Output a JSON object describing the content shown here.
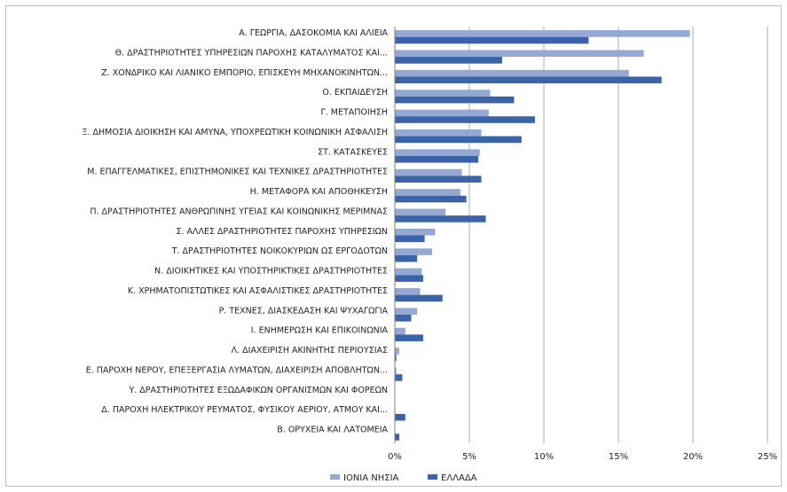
{
  "chart_data": {
    "type": "bar",
    "orientation": "horizontal",
    "categories": [
      "Α. ΓΕΩΡΓΙΑ, ΔΑΣΟΚΟΜΙΑ ΚΑΙ ΑΛΙΕΙΑ",
      "Θ. ΔΡΑΣΤΗΡΙΟΤΗΤΕΣ ΥΠΗΡΕΣΙΩΝ ΠΑΡΟΧΗΣ ΚΑΤΑΛΥΜΑΤΟΣ ΚΑΙ...",
      "Ζ. ΧΟΝΔΡΙΚΟ ΚΑΙ ΛΙΑΝΙΚΟ ΕΜΠΟΡΙΟ, ΕΠΙΣΚΕΥΗ ΜΗΧΑΝΟΚΙΝΗΤΩΝ...",
      "Ο. ΕΚΠΑΙΔΕΥΣΗ",
      "Γ. ΜΕΤΑΠΟΙΗΣΗ",
      "Ξ. ΔΗΜΟΣΙΑ ΔΙΟΙΚΗΣΗ ΚΑΙ ΑΜΥΝΑ, ΥΠΟΧΡΕΩΤΙΚΗ ΚΟΙΝΩΝΙΚΗ ΑΣΦΑΛΙΣΗ",
      "ΣΤ. ΚΑΤΑΣΚΕΥΕΣ",
      "Μ. ΕΠΑΓΓΕΛΜΑΤΙΚΕΣ, ΕΠΙΣΤΗΜΟΝΙΚΕΣ ΚΑΙ ΤΕΧΝΙΚΕΣ ΔΡΑΣΤΗΡΙΟΤΗΤΕΣ",
      "Η. ΜΕΤΑΦΟΡΑ ΚΑΙ ΑΠΟΘΗΚΕΥΣΗ",
      "Π. ΔΡΑΣΤΗΡΙΟΤΗΤΕΣ ΑΝΘΡΩΠΙΝΗΣ ΥΓΕΙΑΣ ΚΑΙ ΚΟΙΝΩΝΙΚΗΣ ΜΕΡΙΜΝΑΣ",
      "Σ. ΑΛΛΕΣ ΔΡΑΣΤΗΡΙΟΤΗΤΕΣ ΠΑΡΟΧΗΣ ΥΠΗΡΕΣΙΩΝ",
      "Τ. ΔΡΑΣΤΗΡΙΟΤΗΤΕΣ ΝΟΙΚΟΚΥΡΙΩΝ ΩΣ ΕΡΓΟΔΟΤΩΝ",
      "Ν. ΔΙΟΙΚΗΤΙΚΕΣ ΚΑΙ ΥΠΟΣΤΗΡΙΚΤΙΚΕΣ ΔΡΑΣΤΗΡΙΟΤΗΤΕΣ",
      "Κ. ΧΡΗΜΑΤΟΠΙΣΤΩΤΙΚΕΣ ΚΑΙ ΑΣΦΑΛΙΣΤΙΚΕΣ ΔΡΑΣΤΗΡΙΟΤΗΤΕΣ",
      "Ρ. ΤΕΧΝΕΣ, ΔΙΑΣΚΕΔΑΣΗ ΚΑΙ ΨΥΧΑΓΩΓΙΑ",
      "Ι. ΕΝΗΜΕΡΩΣΗ ΚΑΙ ΕΠΙΚΟΙΝΩΝΙΑ",
      "Λ. ΔΙΑΧΕΙΡΙΣΗ ΑΚΙΝΗΤΗΣ ΠΕΡΙΟΥΣΙΑΣ",
      "Ε. ΠΑΡΟΧΗ ΝΕΡΟΥ, ΕΠΕΞΕΡΓΑΣΙΑ ΛΥΜΑΤΩΝ, ΔΙΑΧΕΙΡΙΣΗ ΑΠΟΒΛΗΤΩΝ...",
      "Υ. ΔΡΑΣΤΗΡΙΟΤΗΤΕΣ ΕΞΩΔΑΦΙΚΩΝ ΟΡΓΑΝΙΣΜΩΝ ΚΑΙ ΦΟΡΕΩΝ",
      "Δ. ΠΑΡΟΧΗ ΗΛΕΚΤΡΙΚΟΥ ΡΕΥΜΑΤΟΣ, ΦΥΣΙΚΟΥ ΑΕΡΙΟΥ, ΑΤΜΟΥ ΚΑΙ...",
      "Β. ΟΡΥΧΕΙΑ ΚΑΙ ΛΑΤΟΜΕΙΑ"
    ],
    "series": [
      {
        "name": "ΙΟΝΙΑ ΝΗΣΙΑ",
        "color": "#93a9d4",
        "values": [
          19.8,
          16.7,
          15.7,
          6.4,
          6.3,
          5.8,
          5.7,
          4.5,
          4.4,
          3.4,
          2.7,
          2.5,
          1.8,
          1.7,
          1.5,
          0.7,
          0.3,
          0.1,
          0.0,
          0.0,
          0.0
        ]
      },
      {
        "name": "ΕΛΛΑΔΑ",
        "color": "#3b64a8",
        "values": [
          13.0,
          7.2,
          17.9,
          8.0,
          9.4,
          8.5,
          5.6,
          5.8,
          4.8,
          6.1,
          2.0,
          1.5,
          1.9,
          3.2,
          1.1,
          1.9,
          0.1,
          0.5,
          0.0,
          0.7,
          0.3
        ]
      }
    ],
    "xlim": [
      0,
      25
    ],
    "x_ticks": [
      "0%",
      "5%",
      "10%",
      "15%",
      "20%",
      "25%"
    ],
    "grid": true,
    "legend_position": "bottom"
  }
}
